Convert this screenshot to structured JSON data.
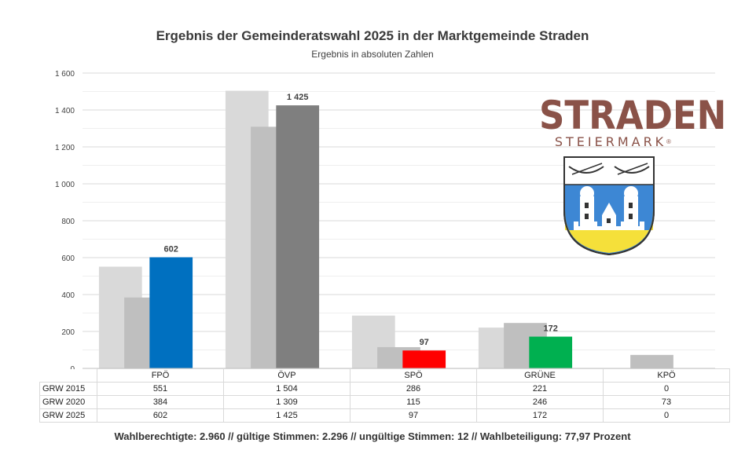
{
  "chart_data": {
    "type": "bar",
    "title": "Ergebnis der Gemeinderatswahl 2025 in der Marktgemeinde Straden",
    "subtitle": "Ergebnis in absoluten Zahlen",
    "categories": [
      "FPÖ",
      "ÖVP",
      "SPÖ",
      "GRÜNE",
      "KPÖ"
    ],
    "category_colors_2025": [
      "#0070c0",
      "#7f7f7f",
      "#ff0000",
      "#00b050",
      "#7f7f7f"
    ],
    "series": [
      {
        "name": "GRW 2015",
        "values": [
          551,
          1504,
          286,
          221,
          0
        ],
        "color": "#d9d9d9"
      },
      {
        "name": "GRW 2020",
        "values": [
          384,
          1309,
          115,
          246,
          73
        ],
        "color": "#bfbfbf"
      },
      {
        "name": "GRW 2025",
        "values": [
          602,
          1425,
          97,
          172,
          0
        ]
      }
    ],
    "table_values": [
      [
        "551",
        "1 504",
        "286",
        "221",
        "0"
      ],
      [
        "384",
        "1 309",
        "115",
        "246",
        "73"
      ],
      [
        "602",
        "1 425",
        "97",
        "172",
        "0"
      ]
    ],
    "data_labels_2025": [
      "602",
      "1 425",
      "97",
      "172",
      ""
    ],
    "ylim": [
      0,
      1600
    ],
    "yticks": [
      0,
      200,
      400,
      600,
      800,
      1000,
      1200,
      1400,
      1600
    ],
    "ytick_labels": [
      "0",
      "200",
      "400",
      "600",
      "800",
      "1 000",
      "1 200",
      "1 400",
      "1 600"
    ],
    "grid": true,
    "legend": "data table below chart"
  },
  "footer": "Wahlberechtigte: 2.960  //  gültige Stimmen: 2.296  //  ungültige Stimmen: 12  //  Wahlbeteiligung: 77,97 Prozent",
  "logo": {
    "wordmark": "STRADEN",
    "subline": "STEIERMARK",
    "registered": "®",
    "colors": {
      "text": "#8a5248",
      "shield_blue": "#3d87d4",
      "shield_yellow": "#f5e03a"
    }
  }
}
